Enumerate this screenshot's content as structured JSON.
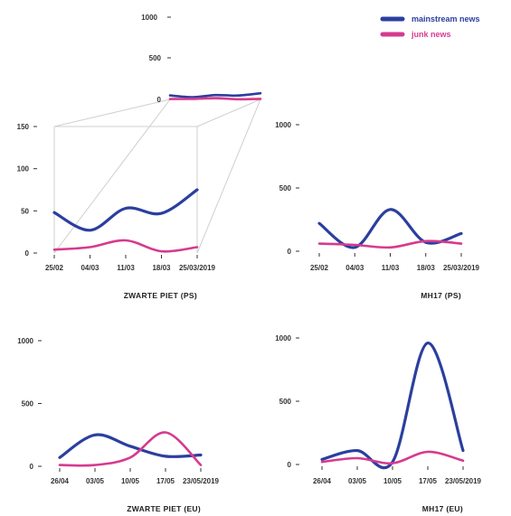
{
  "chart_data": {
    "type": "line",
    "legend": {
      "placement": "top-right",
      "items": [
        {
          "name": "mainstream news",
          "color": "#2b3f9e"
        },
        {
          "name": "junk news",
          "color": "#d63a8f"
        }
      ]
    },
    "zoom_inset": {
      "yticks": [
        "1000",
        "500",
        "0"
      ],
      "ylim": [
        0,
        1000
      ],
      "series": [
        {
          "name": "mainstream news",
          "values": [
            48,
            27,
            53,
            47,
            75
          ]
        },
        {
          "name": "junk news",
          "values": [
            4,
            7,
            15,
            2,
            7
          ]
        }
      ]
    },
    "panels": [
      {
        "title": "ZWARTE PIET (PS)",
        "ylim": [
          0,
          150
        ],
        "yticks": [
          "150",
          "100",
          "50",
          "0"
        ],
        "x_labels": [
          "25/02",
          "04/03",
          "11/03",
          "18/03",
          "25/03/2019"
        ],
        "series": [
          {
            "name": "mainstream news",
            "values": [
              48,
              27,
              53,
              47,
              75
            ]
          },
          {
            "name": "junk news",
            "values": [
              4,
              7,
              15,
              2,
              7
            ]
          }
        ]
      },
      {
        "title": "MH17 (PS)",
        "ylim": [
          0,
          1000
        ],
        "yticks": [
          "1000",
          "500",
          "0"
        ],
        "x_labels": [
          "25/02",
          "04/03",
          "11/03",
          "18/03",
          "25/03/2019"
        ],
        "series": [
          {
            "name": "mainstream news",
            "values": [
              220,
              30,
              330,
              70,
              140
            ]
          },
          {
            "name": "junk news",
            "values": [
              60,
              50,
              30,
              80,
              60
            ]
          }
        ]
      },
      {
        "title": "ZWARTE PIET (EU)",
        "ylim": [
          0,
          1000
        ],
        "yticks": [
          "1000",
          "500",
          "0"
        ],
        "x_labels": [
          "26/04",
          "03/05",
          "10/05",
          "17/05",
          "23/05/2019"
        ],
        "series": [
          {
            "name": "mainstream news",
            "values": [
              70,
              250,
              160,
              80,
              90
            ]
          },
          {
            "name": "junk news",
            "values": [
              10,
              10,
              70,
              270,
              10
            ]
          }
        ]
      },
      {
        "title": "MH17 (EU)",
        "ylim": [
          0,
          1000
        ],
        "yticks": [
          "1000",
          "500",
          "0"
        ],
        "x_labels": [
          "26/04",
          "03/05",
          "10/05",
          "17/05",
          "23/05/2019"
        ],
        "series": [
          {
            "name": "mainstream news",
            "values": [
              40,
              110,
              20,
              960,
              110
            ]
          },
          {
            "name": "junk news",
            "values": [
              20,
              50,
              10,
              100,
              30
            ]
          }
        ]
      }
    ]
  }
}
